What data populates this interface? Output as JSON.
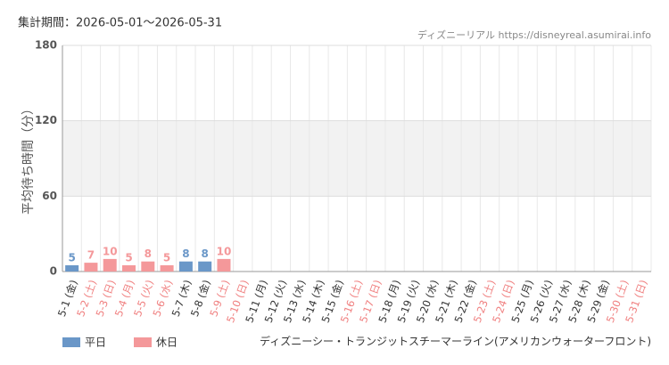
{
  "chart_data": {
    "type": "bar",
    "title": "集計期間：2026-05-01〜2026-05-31",
    "source": "ディズニーリアル https://disneyreal.asumirai.info",
    "y_label": "平均待ち時間（分）",
    "subtitle": "ディズニーシー・トランジットスチーマーライン(アメリカンウォーターフロント)",
    "categories": [
      "5-1 (金)",
      "5-2 (土)",
      "5-3 (日)",
      "5-4 (月)",
      "5-5 (火)",
      "5-6 (水)",
      "5-7 (木)",
      "5-8 (金)",
      "5-9 (土)",
      "5-10 (日)",
      "5-11 (月)",
      "5-12 (火)",
      "5-13 (水)",
      "5-14 (木)",
      "5-15 (金)",
      "5-16 (土)",
      "5-17 (日)",
      "5-18 (月)",
      "5-19 (火)",
      "5-20 (水)",
      "5-21 (木)",
      "5-22 (金)",
      "5-23 (土)",
      "5-24 (日)",
      "5-25 (月)",
      "5-26 (火)",
      "5-27 (水)",
      "5-28 (木)",
      "5-29 (金)",
      "5-30 (土)",
      "5-31 (日)"
    ],
    "category_colors": [
      "#333333",
      "#f08080",
      "#f08080",
      "#f08080",
      "#f08080",
      "#f08080",
      "#333333",
      "#333333",
      "#f08080",
      "#f08080",
      "#333333",
      "#333333",
      "#333333",
      "#333333",
      "#333333",
      "#f08080",
      "#f08080",
      "#333333",
      "#333333",
      "#333333",
      "#333333",
      "#333333",
      "#f08080",
      "#f08080",
      "#333333",
      "#333333",
      "#333333",
      "#333333",
      "#333333",
      "#f08080",
      "#f08080"
    ],
    "series": [
      {
        "name": "平日",
        "color": "#6a97c8",
        "values": [
          5,
          null,
          null,
          null,
          null,
          null,
          8,
          8,
          null,
          null,
          null,
          null,
          null,
          null,
          null,
          null,
          null,
          null,
          null,
          null,
          null,
          null,
          null,
          null,
          null,
          null,
          null,
          null,
          null,
          null,
          null
        ]
      },
      {
        "name": "休日",
        "color": "#f4989a",
        "values": [
          null,
          7,
          10,
          5,
          8,
          5,
          null,
          null,
          10,
          null,
          null,
          null,
          null,
          null,
          null,
          null,
          null,
          null,
          null,
          null,
          null,
          null,
          null,
          null,
          null,
          null,
          null,
          null,
          null,
          null,
          null
        ]
      }
    ],
    "ylim": [
      0,
      180
    ],
    "yticks": [
      0,
      60,
      120,
      180
    ],
    "grid": true
  }
}
